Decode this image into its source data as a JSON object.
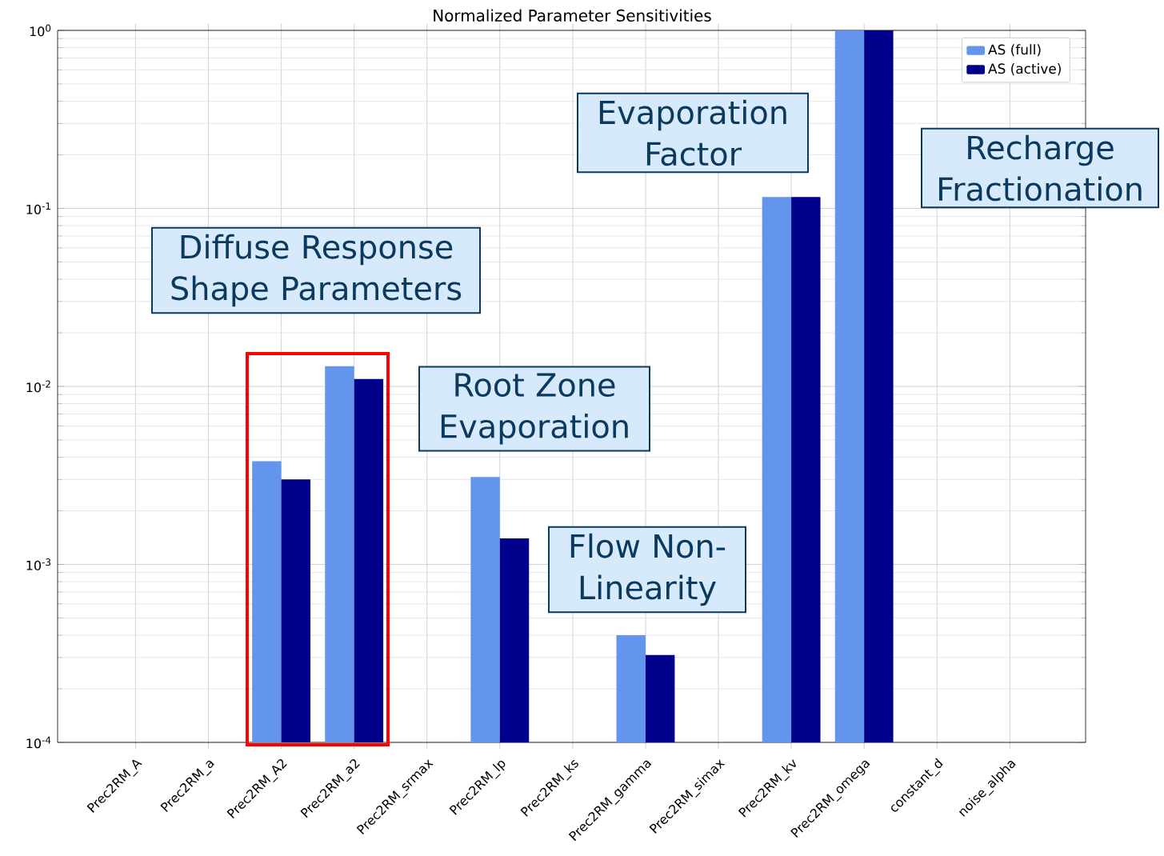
{
  "chart_data": {
    "type": "bar",
    "title": "Normalized Parameter Sensitivities",
    "categories": [
      "Prec2RM_A",
      "Prec2RM_a",
      "Prec2RM_A2",
      "Prec2RM_a2",
      "Prec2RM_srmax",
      "Prec2RM_lp",
      "Prec2RM_ks",
      "Prec2RM_gamma",
      "Prec2RM_simax",
      "Prec2RM_kv",
      "Prec2RM_omega",
      "constant_d",
      "noise_alpha"
    ],
    "series": [
      {
        "name": "AS (full)",
        "color": "#6495ed",
        "values": [
          null,
          null,
          0.0038,
          0.013,
          null,
          0.0031,
          null,
          0.0004,
          null,
          0.116,
          1.0,
          null,
          null
        ]
      },
      {
        "name": "AS (active)",
        "color": "#00008b",
        "values": [
          null,
          null,
          0.003,
          0.011,
          null,
          0.0014,
          null,
          0.00031,
          null,
          0.116,
          1.0,
          null,
          null
        ]
      }
    ],
    "log": "y",
    "ylim": [
      0.0001,
      1
    ],
    "yticks": [
      {
        "value": 0.0001,
        "label": "10$^{-4}$"
      },
      {
        "value": 0.001,
        "label": "10$^{-3}$"
      },
      {
        "value": 0.01,
        "label": "10$^{-2}$"
      },
      {
        "value": 0.1,
        "label": "10$^{-1}$"
      },
      {
        "value": 1,
        "label": "10$^{0}$"
      }
    ],
    "grid": true,
    "legend": "top right",
    "annotations": [
      "Diffuse Response Shape Parameters",
      "Evaporation Factor",
      "Root Zone Evaporation",
      "Flow Non-Linearity",
      "Recharge Fractionation"
    ]
  }
}
